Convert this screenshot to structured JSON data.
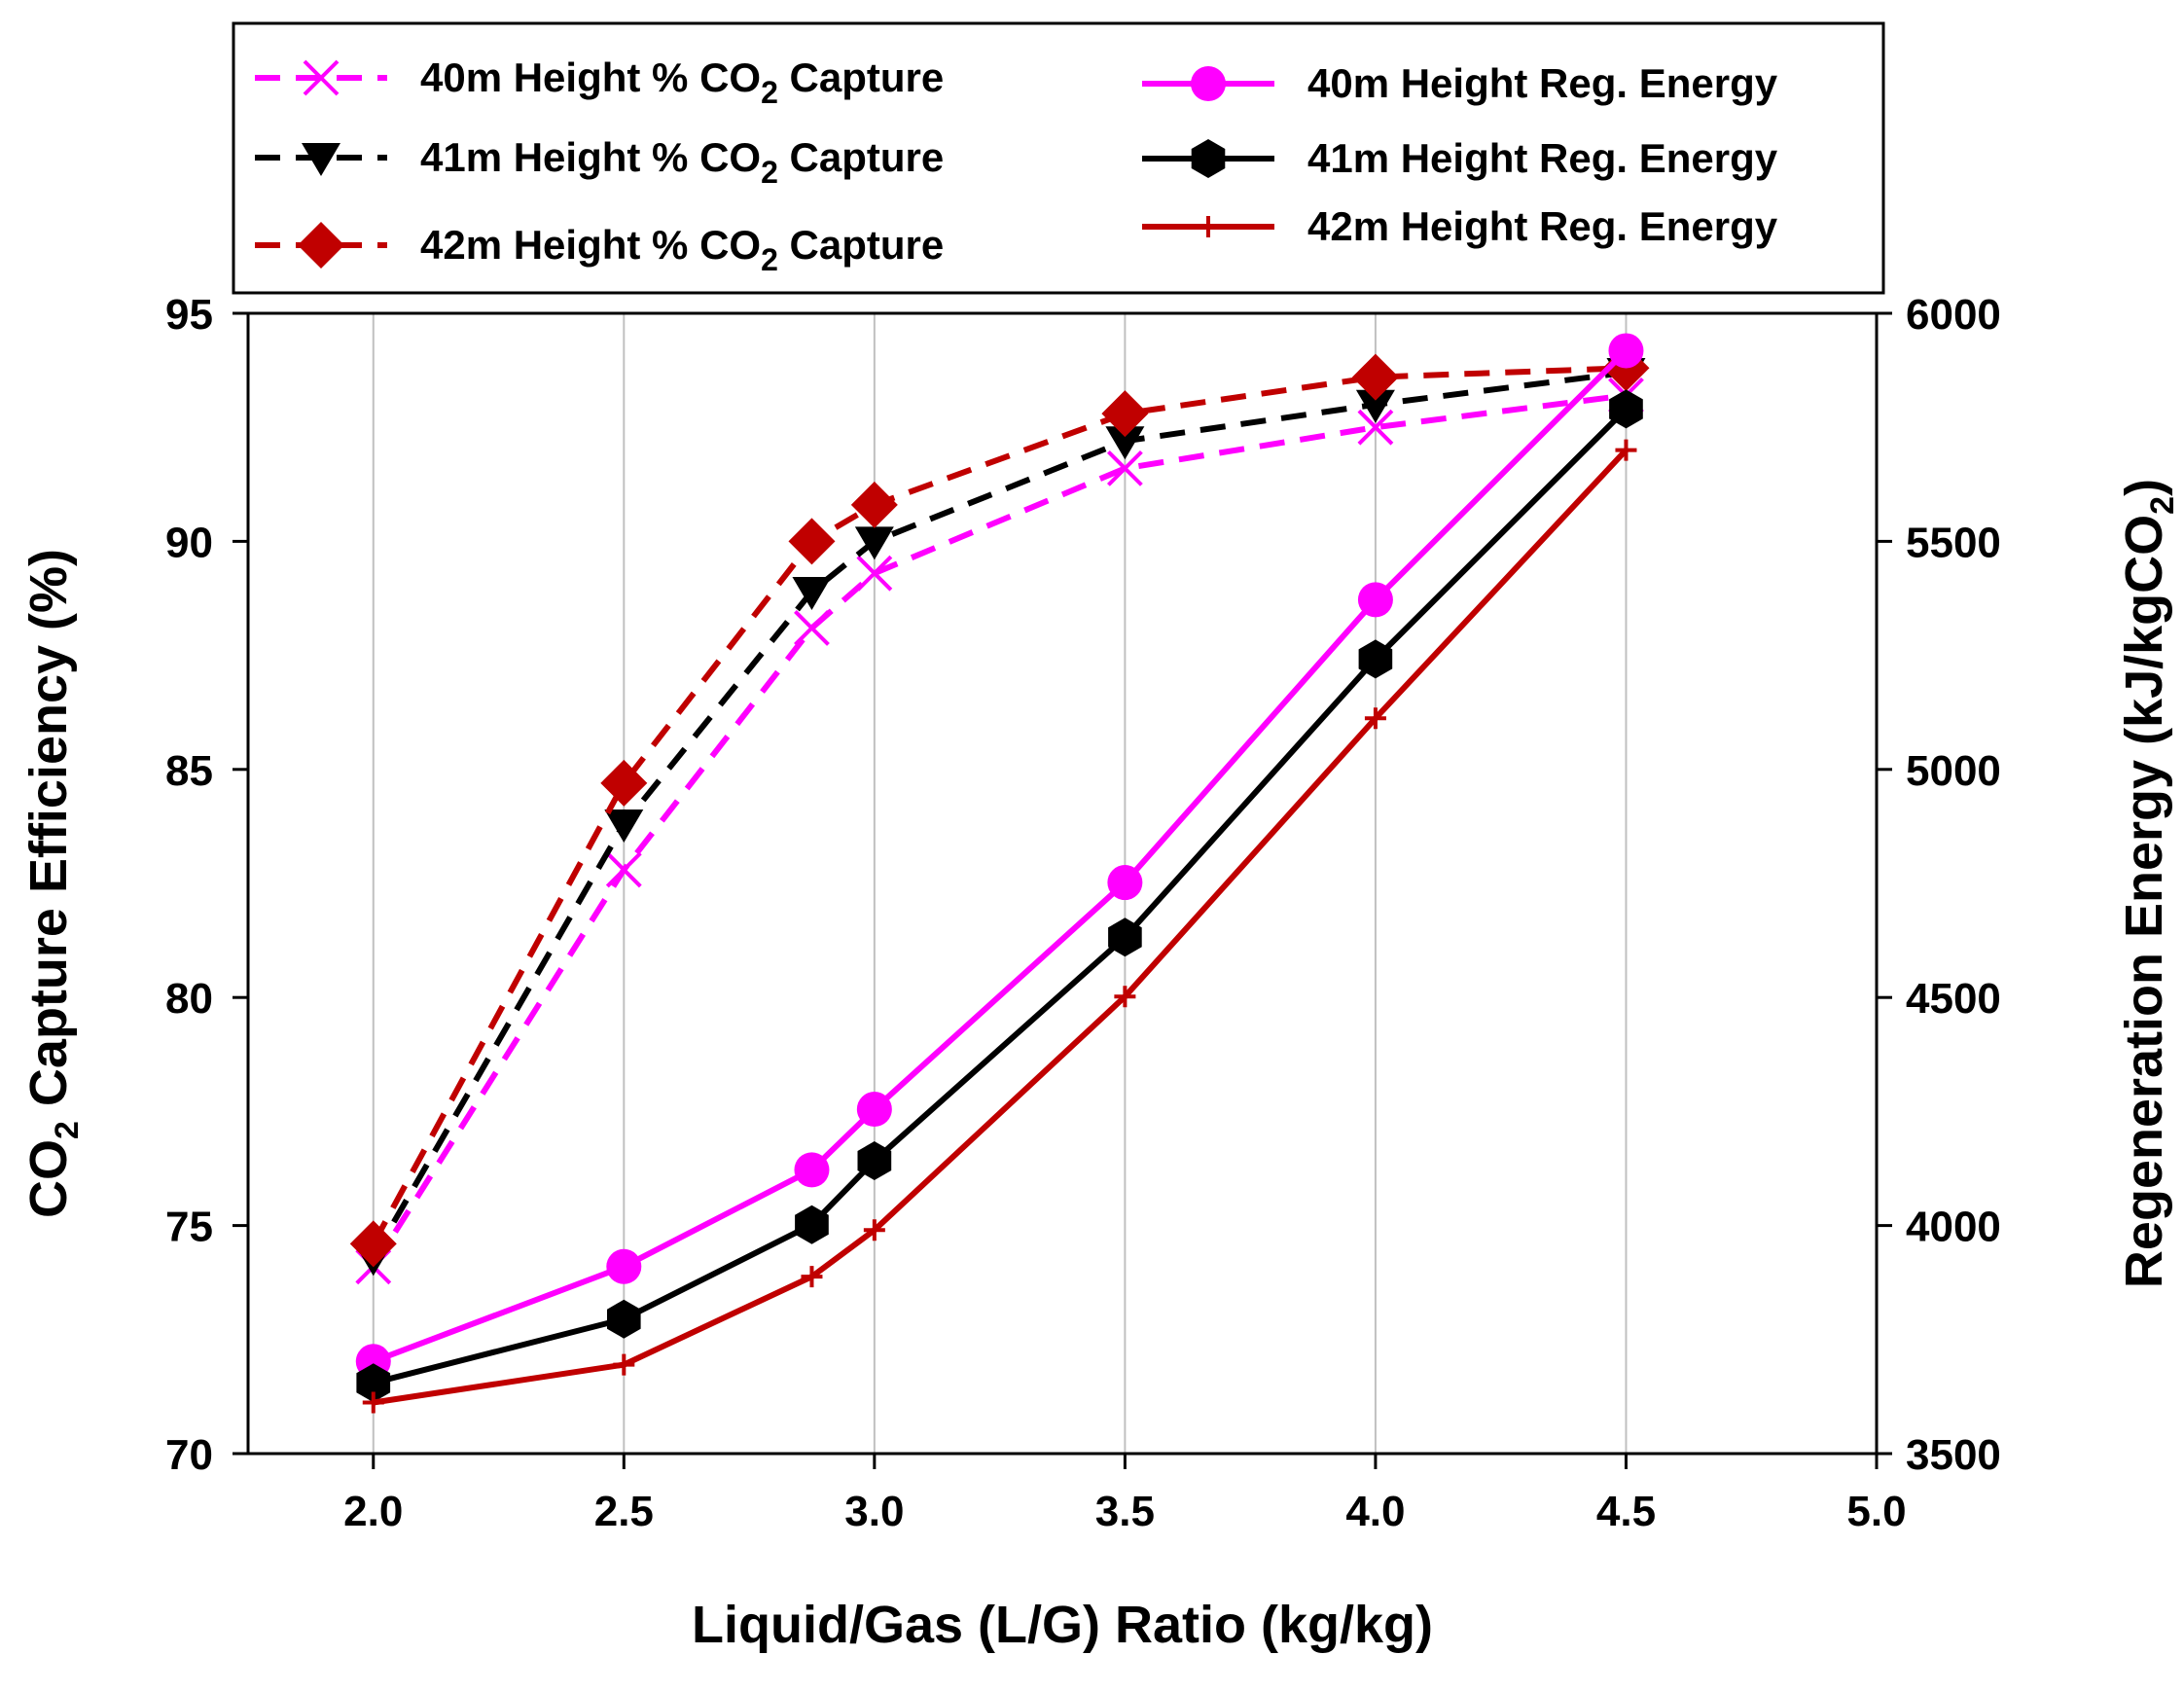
{
  "chart_data": {
    "type": "line",
    "x_axis": {
      "title": "Liquid/Gas (L/G) Ratio (kg/kg)",
      "range": [
        1.75,
        5.0
      ],
      "ticks": [
        "2.0",
        "2.5",
        "3.0",
        "3.5",
        "4.0",
        "4.5",
        "5.0"
      ],
      "tick_values": [
        2.0,
        2.5,
        3.0,
        3.5,
        4.0,
        4.5,
        5.0
      ]
    },
    "y_left": {
      "title_main": "CO",
      "title_sub": "2",
      "title_rest": " Capture Efficiency (%)",
      "range": [
        70,
        95
      ],
      "ticks": [
        "70",
        "75",
        "80",
        "85",
        "90",
        "95"
      ],
      "tick_values": [
        70,
        75,
        80,
        85,
        90,
        95
      ]
    },
    "y_right": {
      "title_main": "Regeneration Energy (kJ/kgCO",
      "title_sub": "2",
      "title_rest": ")",
      "range": [
        3500,
        6000
      ],
      "ticks": [
        "3500",
        "4000",
        "4500",
        "5000",
        "5500",
        "6000"
      ],
      "tick_values": [
        3500,
        4000,
        4500,
        5000,
        5500,
        6000
      ]
    },
    "grid": "vertical",
    "legend_placement": "top",
    "series": [
      {
        "id": "cap40",
        "label_main": "40m Height % CO",
        "label_sub": "2",
        "label_rest": " Capture",
        "axis": "left",
        "color": "#ff00ff",
        "dash": "dashed",
        "marker": "x",
        "x": [
          2.0,
          2.5,
          2.875,
          3.0,
          3.5,
          4.0,
          4.5
        ],
        "y": [
          74.1,
          82.8,
          88.1,
          89.3,
          91.6,
          92.5,
          93.2
        ]
      },
      {
        "id": "cap41",
        "label_main": "41m Height % CO",
        "label_sub": "2",
        "label_rest": " Capture",
        "axis": "left",
        "color": "#000000",
        "dash": "dashed",
        "marker": "triangle-down",
        "x": [
          2.0,
          2.5,
          2.875,
          3.0,
          3.5,
          4.0,
          4.5
        ],
        "y": [
          74.3,
          83.8,
          88.9,
          90.0,
          92.2,
          93.0,
          93.7
        ]
      },
      {
        "id": "cap42",
        "label_main": "42m Height % CO",
        "label_sub": "2",
        "label_rest": " Capture",
        "axis": "left",
        "color": "#c00000",
        "dash": "dashed",
        "marker": "diamond",
        "x": [
          2.0,
          2.5,
          2.875,
          3.0,
          3.5,
          4.0,
          4.5
        ],
        "y": [
          74.6,
          84.7,
          90.0,
          90.8,
          92.8,
          93.6,
          93.8
        ]
      },
      {
        "id": "en40",
        "label_main": "40m Height Reg. Energy",
        "label_sub": "",
        "label_rest": "",
        "axis": "right",
        "color": "#ff00ff",
        "dash": "solid",
        "marker": "circle",
        "x": [
          2.0,
          2.5,
          2.875,
          3.0,
          3.5,
          4.0,
          4.5
        ],
        "y": [
          3702,
          3910,
          4122,
          4255,
          4752,
          5372,
          5918
        ]
      },
      {
        "id": "en41",
        "label_main": "41m Height Reg. Energy",
        "label_sub": "",
        "label_rest": "",
        "axis": "right",
        "color": "#000000",
        "dash": "solid",
        "marker": "hexagon",
        "x": [
          2.0,
          2.5,
          2.875,
          3.0,
          3.5,
          4.0,
          4.5
        ],
        "y": [
          3655,
          3795,
          4002,
          4142,
          4632,
          5242,
          5790
        ]
      },
      {
        "id": "en42",
        "label_main": "42m Height Reg. Energy",
        "label_sub": "",
        "label_rest": "",
        "axis": "right",
        "color": "#c00000",
        "dash": "solid",
        "marker": "plus",
        "x": [
          2.0,
          2.5,
          2.875,
          3.0,
          3.5,
          4.0,
          4.5
        ],
        "y": [
          3612,
          3695,
          3888,
          3990,
          4502,
          5112,
          5700
        ]
      }
    ]
  }
}
